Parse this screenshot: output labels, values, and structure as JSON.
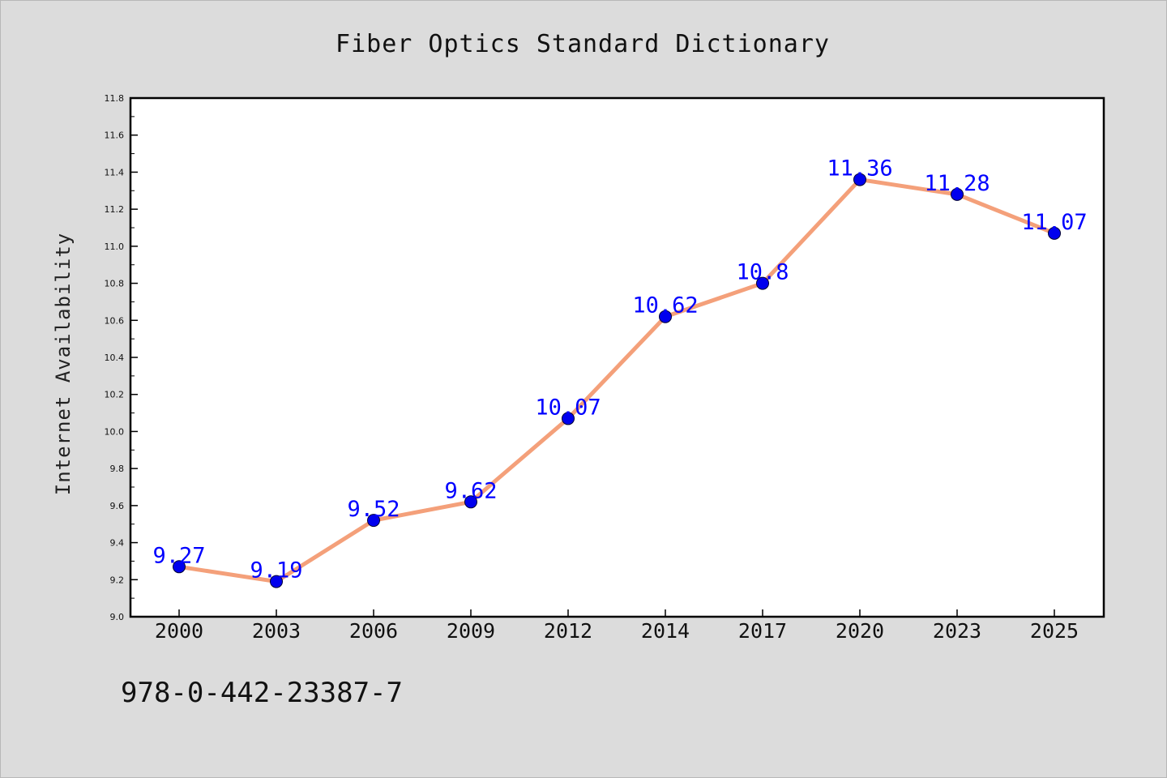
{
  "chart_data": {
    "type": "line",
    "title": "Fiber Optics Standard Dictionary",
    "xlabel": "",
    "ylabel": "Internet Availability",
    "categories": [
      "2000",
      "2003",
      "2006",
      "2009",
      "2012",
      "2014",
      "2017",
      "2020",
      "2023",
      "2025"
    ],
    "series": [
      {
        "values": [
          9.27,
          9.19,
          9.52,
          9.62,
          10.07,
          10.62,
          10.8,
          11.36,
          11.28,
          11.07
        ],
        "labels": [
          "9.27",
          "9.19",
          "9.52",
          "9.62",
          "10.07",
          "10.62",
          "10.8",
          "11.36",
          "11.28",
          "11.07"
        ],
        "line_color": "#f4a07a",
        "marker_color": "#0000ee"
      }
    ],
    "ylim": [
      9.0,
      11.8
    ],
    "yticks": [
      "9.0",
      "9.2",
      "9.4",
      "9.6",
      "9.8",
      "10.0",
      "10.2",
      "10.4",
      "10.6",
      "10.8",
      "11.0",
      "11.2",
      "11.4",
      "11.6",
      "11.8"
    ],
    "grid": false,
    "label_color": "#0000ff"
  },
  "footer": {
    "isbn": "978-0-442-23387-7"
  }
}
